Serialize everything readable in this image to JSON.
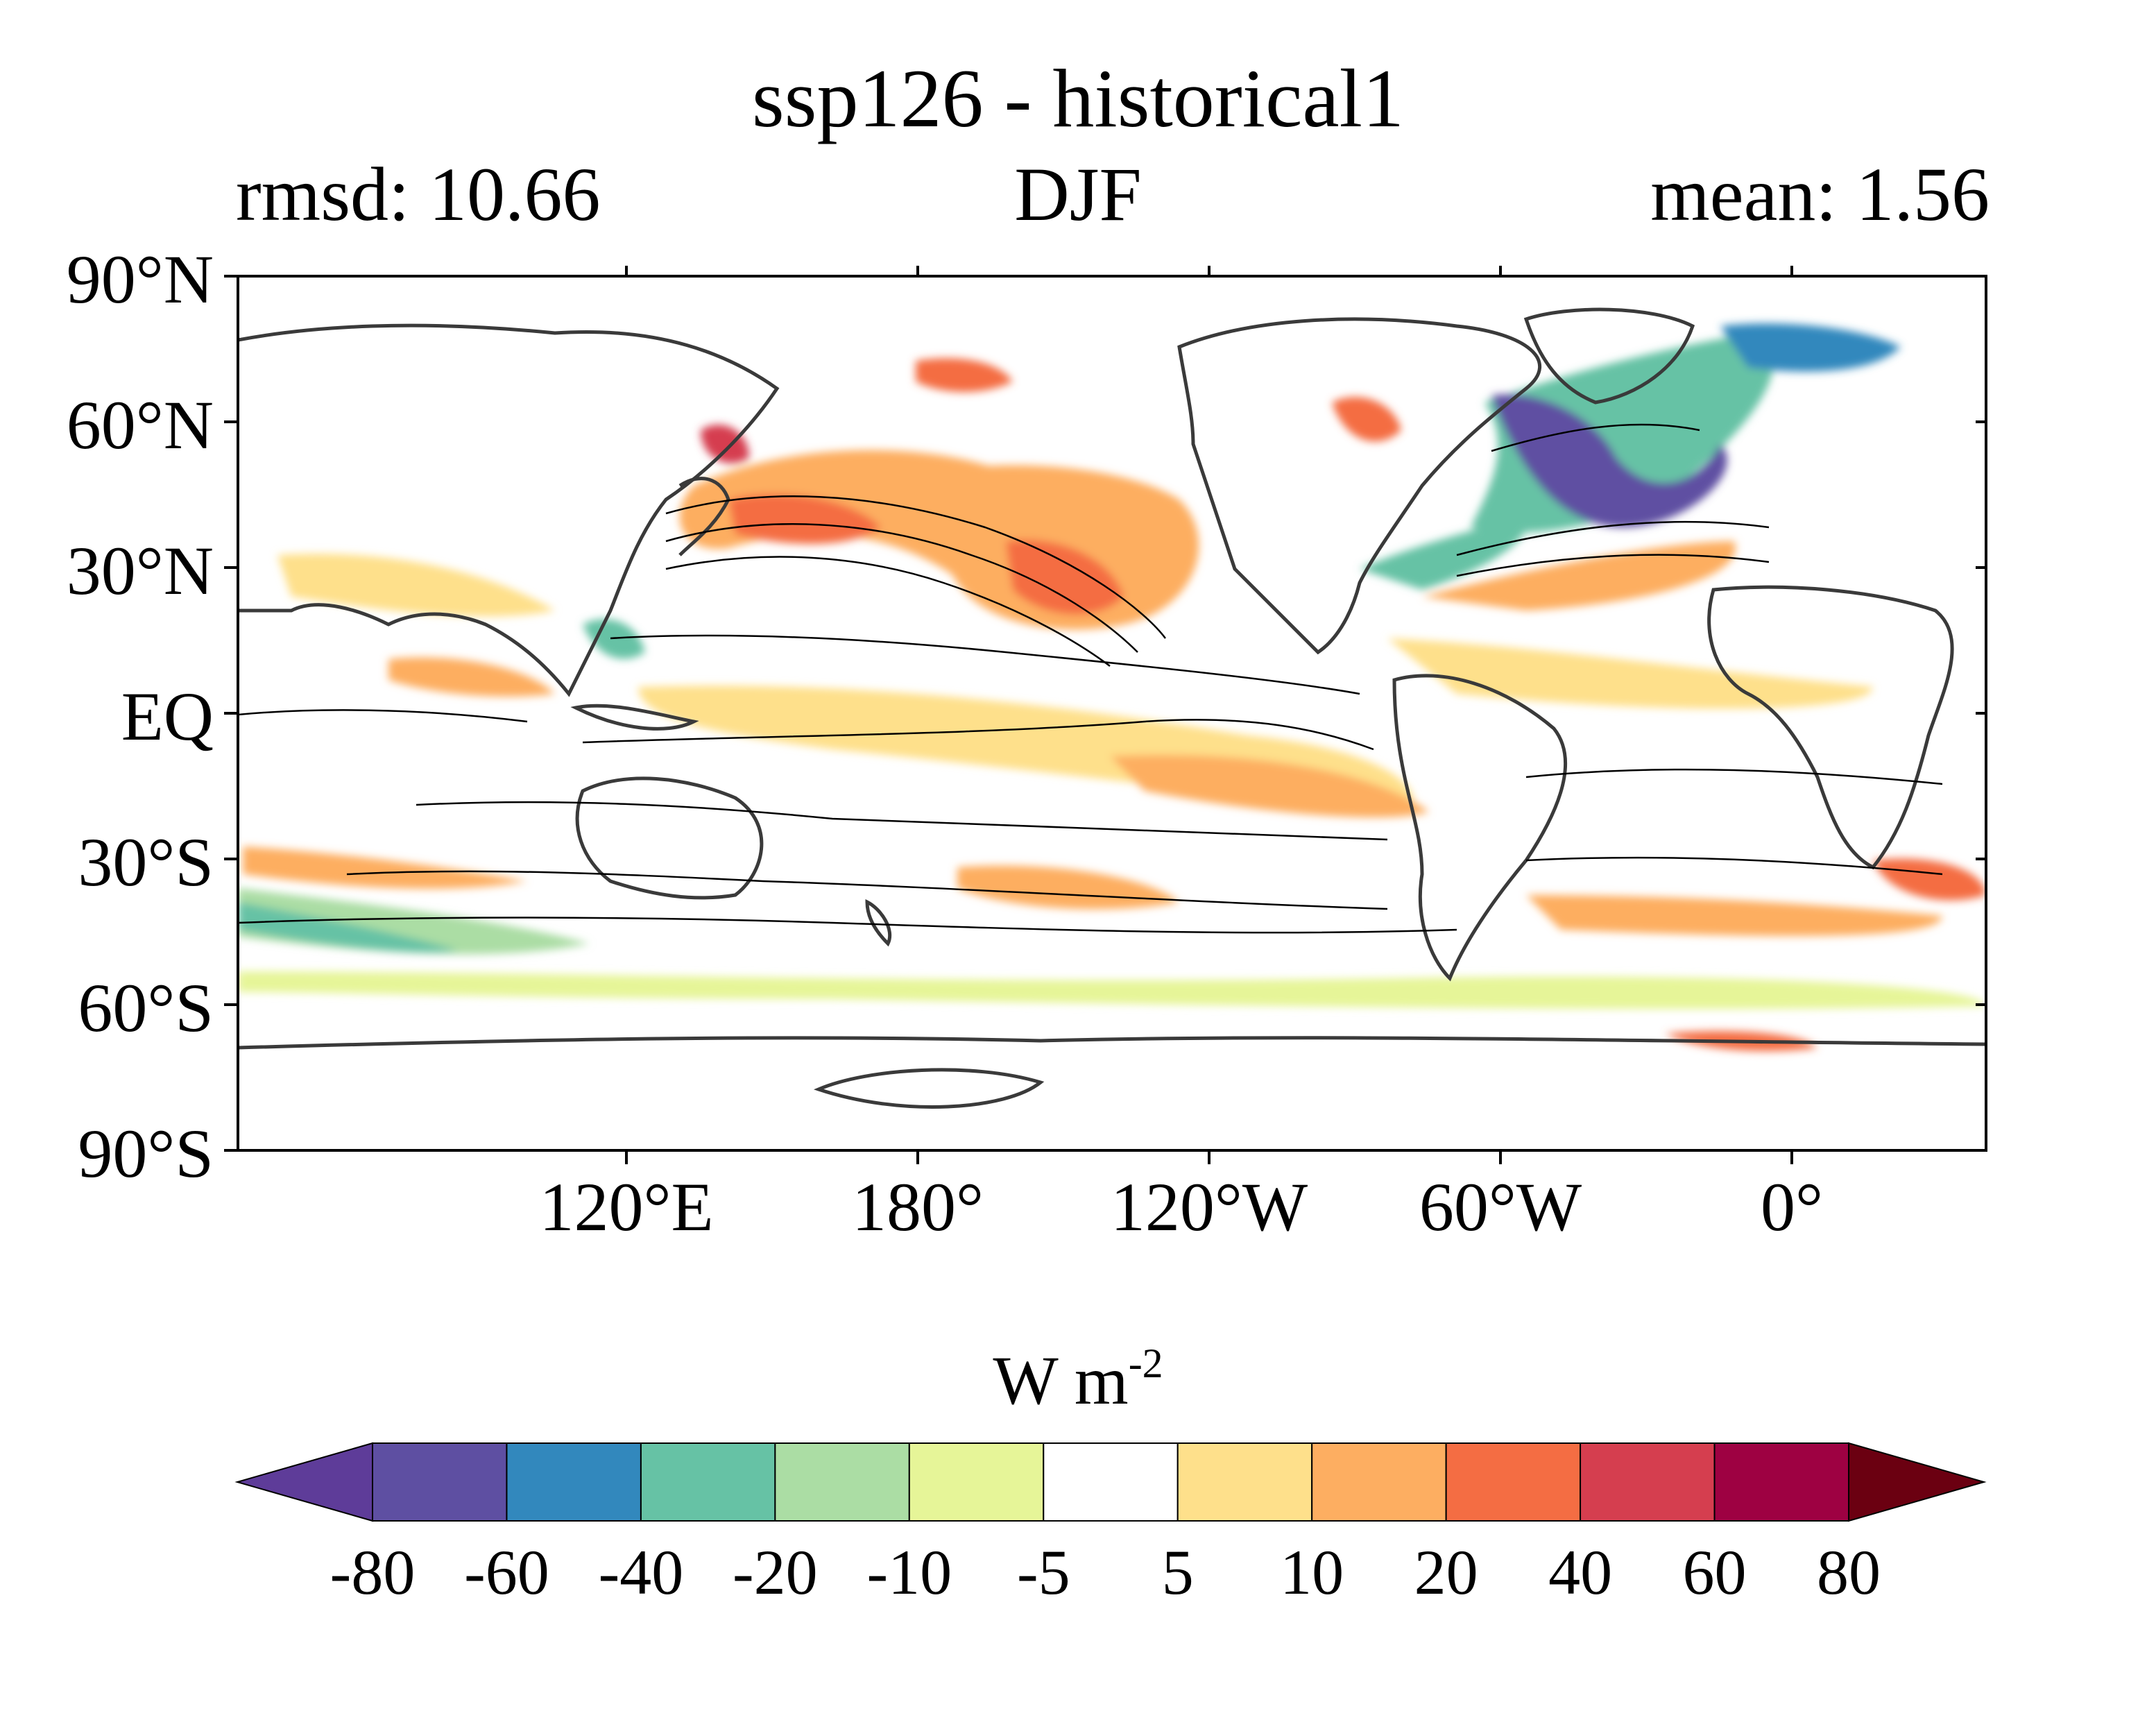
{
  "header": {
    "title": "ssp126 - historical1",
    "left_label": "rmsd: 10.66",
    "center_label": "DJF",
    "right_label": "mean: 1.56"
  },
  "map": {
    "projection": "equirectangular",
    "lat_range": [
      -90,
      90
    ],
    "lon_range": [
      20,
      380
    ],
    "y_tick_labels": [
      "90°N",
      "60°N",
      "30°N",
      "EQ",
      "30°S",
      "60°S",
      "90°S"
    ],
    "x_tick_labels": [
      "120°E",
      "180°",
      "120°W",
      "60°W",
      "0°"
    ]
  },
  "colorbar": {
    "title": "W m",
    "title_superscript": "-2",
    "labels": [
      "-80",
      "-60",
      "-40",
      "-20",
      "-10",
      "-5",
      "5",
      "10",
      "20",
      "40",
      "60",
      "80"
    ],
    "colors": [
      "#5e3c99",
      "#5e4fa2",
      "#3288bd",
      "#66c2a5",
      "#abdda4",
      "#e6f598",
      "#ffffff",
      "#fee08b",
      "#fdae61",
      "#f46d43",
      "#d53e4f",
      "#9e0142",
      "#6b0011"
    ],
    "extend": "both"
  },
  "colors": {
    "land_outline": "#3a3a3a",
    "contour": "#000000"
  }
}
